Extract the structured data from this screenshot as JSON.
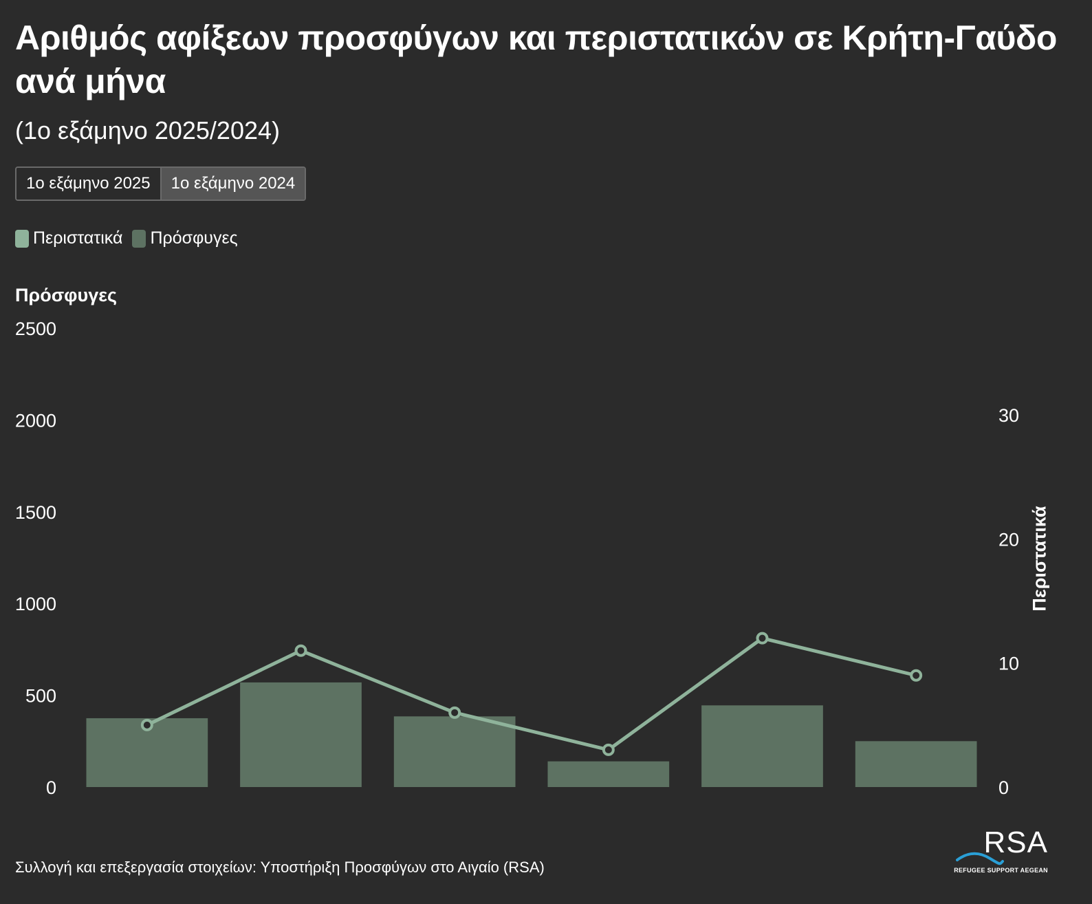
{
  "title": "Αριθμός αφίξεων προσφύγων και περιστατικών σε Κρήτη-Γαύδο ανά μήνα",
  "subtitle": "(1ο εξάμηνο 2025/2024)",
  "toggle": {
    "options": [
      "1ο εξάμηνο 2025",
      "1ο εξάμηνο 2024"
    ],
    "active_index": 1
  },
  "legend": [
    {
      "label": "Περιστατικά",
      "color": "#8fb39b"
    },
    {
      "label": "Πρόσφυγες",
      "color": "#5d7262"
    }
  ],
  "footer": "Συλλογή και επεξεργασία στοιχείων: Υποστήριξη Προσφύγων στο Αιγαίο (RSA)",
  "logo": {
    "text": "RSA",
    "subtext": "REFUGEE SUPPORT AEGEAN",
    "wave_color": "#2a9fd6"
  },
  "chart_data": {
    "type": "bar+line",
    "categories": [
      "",
      "",
      "",
      "",
      "",
      ""
    ],
    "series": [
      {
        "name": "Πρόσφυγες",
        "type": "bar",
        "axis": "left",
        "color": "#5d7262",
        "values": [
          375,
          570,
          385,
          140,
          445,
          250
        ]
      },
      {
        "name": "Περιστατικά",
        "type": "line",
        "axis": "right",
        "color": "#8fb39b",
        "values": [
          5,
          11,
          6,
          3,
          12,
          9
        ]
      }
    ],
    "left_axis": {
      "title": "Πρόσφυγες",
      "min": 0,
      "max": 2500,
      "ticks": [
        0,
        500,
        1000,
        1500,
        2000,
        2500
      ]
    },
    "right_axis": {
      "title": "Περιστατικά",
      "min": 0,
      "max": 30,
      "ticks": [
        0,
        10,
        20,
        30
      ]
    },
    "grid": false,
    "legend_position": "top-left"
  }
}
